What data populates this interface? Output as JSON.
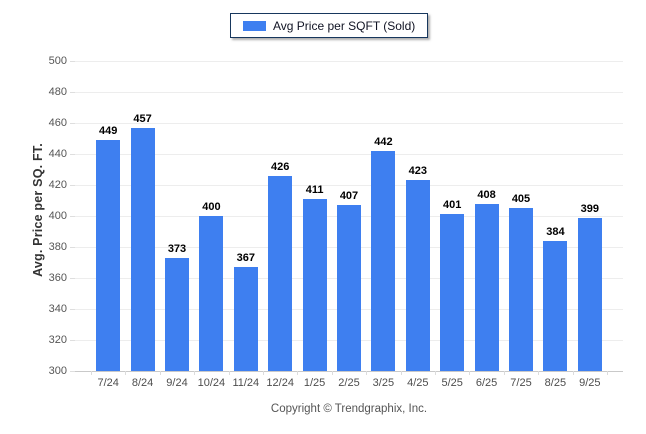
{
  "chart_data": {
    "type": "bar",
    "title": "",
    "legend": "Avg Price per SQFT (Sold)",
    "xlabel": "",
    "ylabel": "Avg. Price per SQ. FT.",
    "categories": [
      "7/24",
      "8/24",
      "9/24",
      "10/24",
      "11/24",
      "12/24",
      "1/25",
      "2/25",
      "3/25",
      "4/25",
      "5/25",
      "6/25",
      "7/25",
      "8/25",
      "9/25"
    ],
    "values": [
      449,
      457,
      373,
      400,
      367,
      426,
      411,
      407,
      442,
      423,
      401,
      408,
      405,
      384,
      399
    ],
    "ylim": [
      300,
      500
    ],
    "ytick_step": 20,
    "grid": "horizontal",
    "legend_position": "top-center",
    "bar_color": "#3E7FF0"
  },
  "footer": {
    "copyright": "Copyright © Trendgraphix, Inc."
  },
  "colors": {
    "bar": "#3E7FF0",
    "gridline": "#ededed",
    "axis_line": "#c9c9c9",
    "tick_label": "#555555",
    "value_label": "#000000",
    "legend_border": "#17375d"
  }
}
